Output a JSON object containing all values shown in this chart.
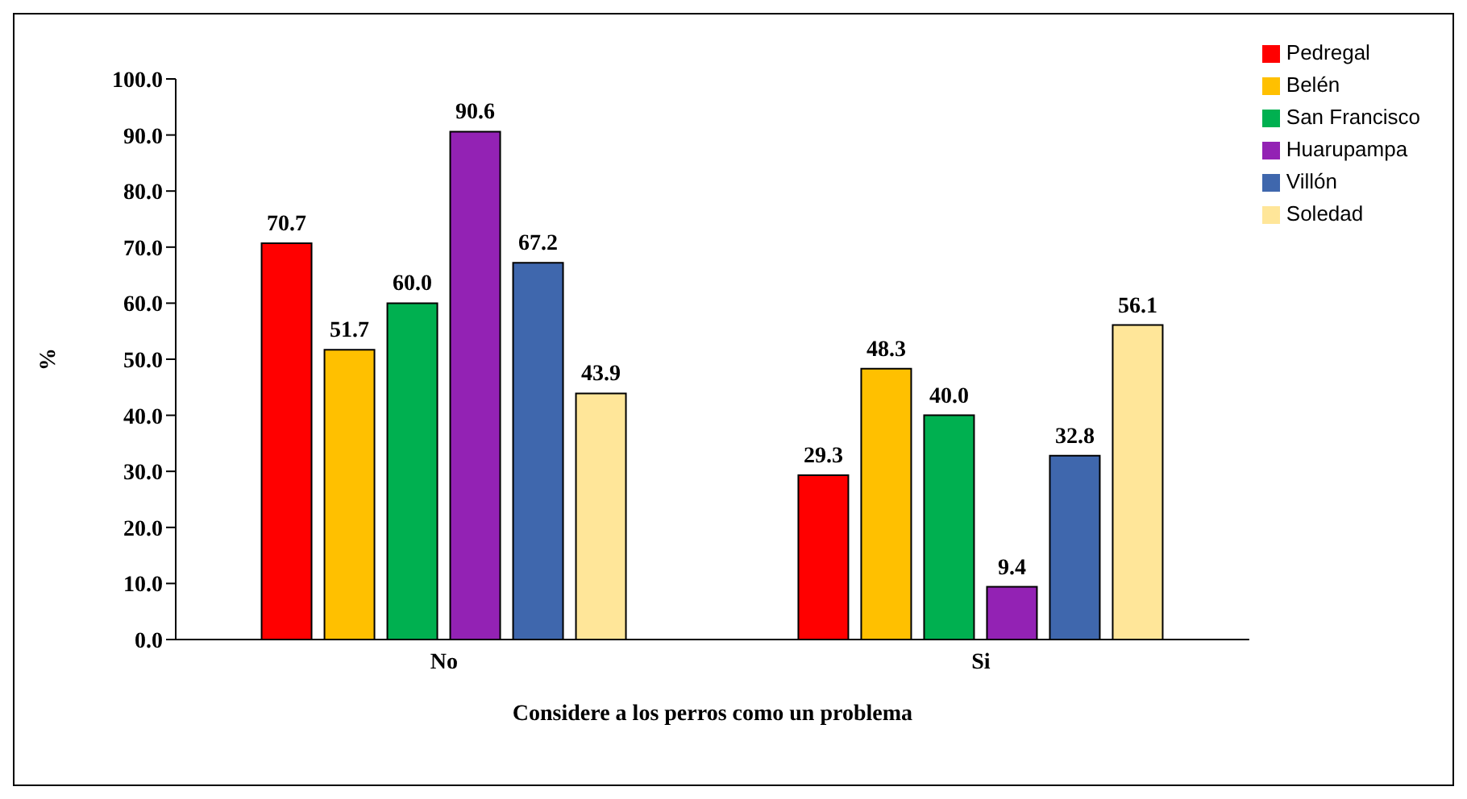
{
  "chart_data": {
    "type": "bar",
    "xlabel": "Considere a los perros como un problema",
    "ylabel": "%",
    "categories": [
      "No",
      "Si"
    ],
    "series": [
      {
        "name": "Pedregal",
        "color": "#ff0000",
        "values": [
          70.7,
          29.3
        ],
        "value_labels": [
          "70.7",
          "29.3"
        ]
      },
      {
        "name": "Belén",
        "color": "#ffc000",
        "values": [
          51.7,
          48.3
        ],
        "value_labels": [
          "51.7",
          "48.3"
        ]
      },
      {
        "name": "San Francisco",
        "color": "#00b050",
        "values": [
          60.0,
          40.0
        ],
        "value_labels": [
          "60.0",
          "40.0"
        ]
      },
      {
        "name": "Huarupampa",
        "color": "#9322b4",
        "values": [
          90.6,
          9.4
        ],
        "value_labels": [
          "90.6",
          "9.4"
        ]
      },
      {
        "name": "Villón",
        "color": "#3f67ad",
        "values": [
          67.2,
          32.8
        ],
        "value_labels": [
          "67.2",
          "32.8"
        ]
      },
      {
        "name": "Soledad",
        "color": "#ffe699",
        "values": [
          43.9,
          56.1
        ],
        "value_labels": [
          "43.9",
          "56.1"
        ]
      }
    ],
    "ylim": [
      0,
      100
    ],
    "yticks": [
      {
        "value": 0,
        "label": "0.0"
      },
      {
        "value": 10,
        "label": "10.0"
      },
      {
        "value": 20,
        "label": "20.0"
      },
      {
        "value": 30,
        "label": "30.0"
      },
      {
        "value": 40,
        "label": "40.0"
      },
      {
        "value": 50,
        "label": "50.0"
      },
      {
        "value": 60,
        "label": "60.0"
      },
      {
        "value": 70,
        "label": "70.0"
      },
      {
        "value": 80,
        "label": "80.0"
      },
      {
        "value": 90,
        "label": "90.0"
      },
      {
        "value": 100,
        "label": "100.0"
      }
    ],
    "grid": false,
    "legend": "top right"
  }
}
